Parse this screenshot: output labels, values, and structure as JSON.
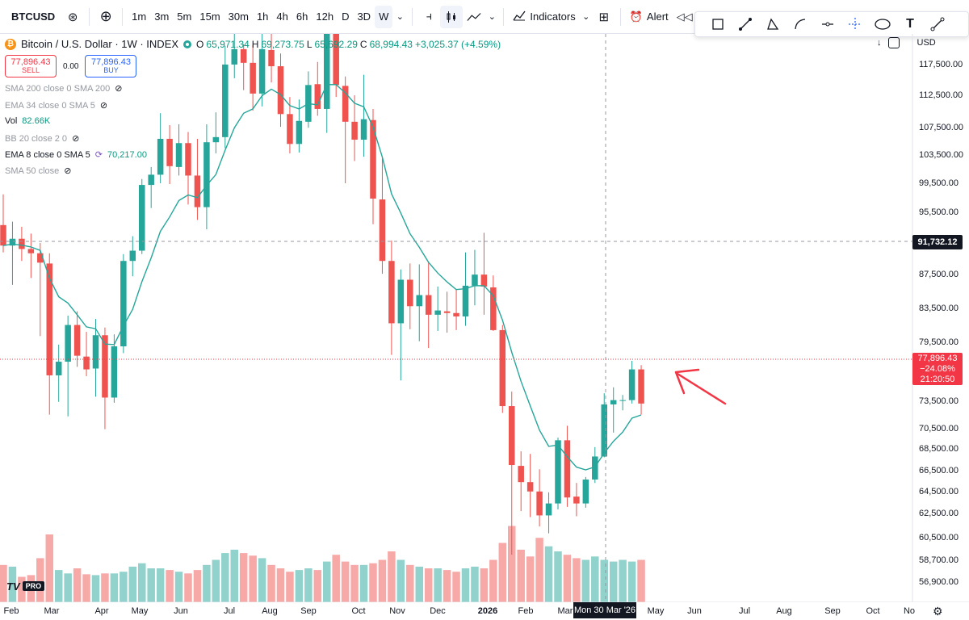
{
  "toolbar": {
    "symbol": "BTCUSD",
    "intervals": [
      "1m",
      "3m",
      "5m",
      "15m",
      "30m",
      "1h",
      "4h",
      "6h",
      "12h",
      "D",
      "3D",
      "W"
    ],
    "active_interval": "W",
    "indicators_label": "Indicators",
    "alert_label": "Alert",
    "replay_label": "Re"
  },
  "legend": {
    "title": "Bitcoin / U.S. Dollar · 1W · INDEX",
    "coin_glyph": "₿",
    "open_label": "O",
    "open": "65,971.34",
    "high_label": "H",
    "high": "69,273.75",
    "low_label": "L",
    "low": "65,692.29",
    "close_label": "C",
    "close": "68,994.43",
    "change": "+3,025.37 (+4.59%)"
  },
  "trade": {
    "sell_price": "77,896.43",
    "sell_label": "SELL",
    "spread": "0.00",
    "buy_price": "77,896.43",
    "buy_label": "BUY"
  },
  "indicators": [
    {
      "name": "SMA 200 close 0 SMA 200",
      "value": "",
      "hidden": true
    },
    {
      "name": "EMA 34 close 0 SMA 5",
      "value": "",
      "hidden": true
    },
    {
      "name": "Vol",
      "value": "82.66K",
      "hidden": false
    },
    {
      "name": "BB 20 close 2 0",
      "value": "",
      "hidden": true
    },
    {
      "name": "EMA 8 close 0 SMA 5",
      "value": "70,217.00",
      "hidden": false
    },
    {
      "name": "SMA 50 close",
      "value": "",
      "hidden": true
    }
  ],
  "price_axis": {
    "currency": "USD",
    "labels": [
      "117,500.00",
      "112,500.00",
      "107,500.00",
      "103,500.00",
      "99,500.00",
      "95,500.00",
      "87,500.00",
      "83,500.00",
      "79,500.00",
      "73,500.00",
      "70,500.00",
      "68,500.00",
      "66,500.00",
      "64,500.00",
      "62,500.00",
      "60,500.00",
      "58,700.00",
      "56,900.00"
    ],
    "crosshair_price": "91,732.12",
    "last_price": "77,896.43",
    "last_change": "−24.08%",
    "countdown": "21:20:50"
  },
  "time_axis": {
    "labels": [
      "Feb",
      "Mar",
      "Apr",
      "May",
      "Jun",
      "Jul",
      "Aug",
      "Sep",
      "Oct",
      "Nov",
      "Dec",
      "2026",
      "Feb",
      "Mar",
      "May",
      "Jun",
      "Jul",
      "Aug",
      "Sep",
      "Oct",
      "No"
    ],
    "crosshair_date": "Mon 30 Mar '26"
  },
  "branding": {
    "logo": "TV",
    "badge": "PRO"
  },
  "colors": {
    "up": "#26a69a",
    "down": "#ef5350",
    "ema": "#26a69a",
    "annotation": "#f23645"
  },
  "chart_data": {
    "type": "candlestick",
    "interval": "1W",
    "candles": [
      [
        98800,
        102400,
        95600,
        96400
      ],
      [
        96400,
        99200,
        91800,
        97200
      ],
      [
        97200,
        98600,
        94600,
        96000
      ],
      [
        96000,
        97800,
        92600,
        95500
      ],
      [
        95500,
        96700,
        85800,
        94400
      ],
      [
        94300,
        95500,
        76600,
        81200
      ],
      [
        81200,
        84800,
        78100,
        82800
      ],
      [
        82800,
        88200,
        76400,
        87100
      ],
      [
        87100,
        88700,
        82200,
        83500
      ],
      [
        83400,
        86300,
        81100,
        81900
      ],
      [
        82000,
        87800,
        78700,
        85900
      ],
      [
        85900,
        86800,
        74900,
        78600
      ],
      [
        78600,
        86000,
        78000,
        84600
      ],
      [
        84600,
        95400,
        83800,
        94600
      ],
      [
        94600,
        97500,
        92800,
        95800
      ],
      [
        95800,
        104200,
        95400,
        103500
      ],
      [
        103500,
        105600,
        100800,
        104700
      ],
      [
        104700,
        111900,
        103700,
        108900
      ],
      [
        108900,
        110500,
        103600,
        105700
      ],
      [
        105600,
        110600,
        104600,
        108400
      ],
      [
        108400,
        109700,
        101200,
        104600
      ],
      [
        104600,
        108900,
        99400,
        100900
      ],
      [
        100900,
        110600,
        98300,
        108500
      ],
      [
        108500,
        112000,
        107200,
        109100
      ],
      [
        109100,
        119800,
        107800,
        117600
      ],
      [
        117600,
        123200,
        116000,
        119400
      ],
      [
        119400,
        120000,
        114600,
        117800
      ],
      [
        117800,
        119900,
        112200,
        114200
      ],
      [
        114200,
        124400,
        112700,
        119400
      ],
      [
        119300,
        121500,
        115500,
        117400
      ],
      [
        117400,
        118900,
        110300,
        111800
      ],
      [
        111800,
        113800,
        107200,
        108300
      ],
      [
        108300,
        113500,
        107300,
        111000
      ],
      [
        110900,
        116800,
        110200,
        115200
      ],
      [
        115300,
        117900,
        111600,
        112400
      ],
      [
        112400,
        123800,
        109600,
        123600
      ],
      [
        123600,
        126200,
        113800,
        115200
      ],
      [
        115100,
        116200,
        103700,
        110900
      ],
      [
        110900,
        114000,
        106300,
        108800
      ],
      [
        108800,
        116400,
        106800,
        111200
      ],
      [
        111100,
        112400,
        98900,
        101900
      ],
      [
        101800,
        106700,
        93100,
        94600
      ],
      [
        94600,
        97000,
        83600,
        87300
      ],
      [
        87300,
        93600,
        80600,
        92400
      ],
      [
        92400,
        94300,
        86600,
        89300
      ],
      [
        89300,
        94200,
        85200,
        90600
      ],
      [
        90600,
        94500,
        84400,
        88300
      ],
      [
        88300,
        91600,
        86400,
        88800
      ],
      [
        88700,
        91000,
        86200,
        88500
      ],
      [
        88500,
        91300,
        86500,
        88100
      ],
      [
        88100,
        95600,
        87000,
        91700
      ],
      [
        91700,
        95900,
        89400,
        93000
      ],
      [
        93000,
        97900,
        88300,
        91600
      ],
      [
        91500,
        92900,
        86400,
        86500
      ],
      [
        86500,
        87100,
        76800,
        77600
      ],
      [
        77600,
        79300,
        60200,
        70700
      ],
      [
        70600,
        72300,
        65300,
        68700
      ],
      [
        68700,
        72000,
        64600,
        67600
      ],
      [
        67600,
        70200,
        63500,
        64800
      ],
      [
        64800,
        67500,
        62700,
        66200
      ],
      [
        66200,
        73900,
        65500,
        73600
      ],
      [
        73600,
        75300,
        65800,
        66900
      ],
      [
        67000,
        68600,
        64700,
        66200
      ],
      [
        66200,
        69300,
        65700,
        69000
      ],
      [
        69000,
        72800,
        68600,
        71700
      ],
      [
        71700,
        79100,
        71600,
        77800
      ],
      [
        77800,
        79800,
        74500,
        78300
      ],
      [
        78300,
        78900,
        77100,
        78300
      ],
      [
        78300,
        82900,
        77900,
        81900
      ],
      [
        81900,
        82400,
        76600,
        77900
      ]
    ],
    "volume_bars": 70,
    "annotation": "red arrow pointing at EMA 8 line near current price"
  }
}
